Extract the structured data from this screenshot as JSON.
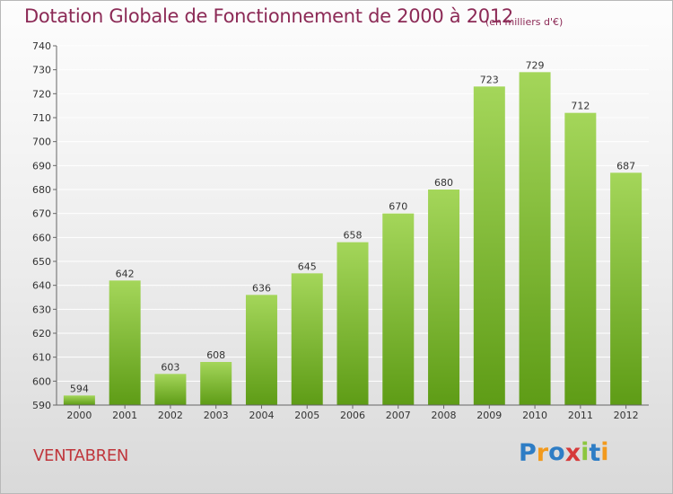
{
  "title": "Dotation Globale de Fonctionnement de 2000 à 2012",
  "unit_note": "(en milliers d'€)",
  "commune": "VENTABREN",
  "logo": {
    "letters": [
      "P",
      "r",
      "o",
      "x",
      "i",
      "t",
      "i"
    ],
    "colors": [
      "#2e7dc5",
      "#f29a1d",
      "#2e7dc5",
      "#d63a3a",
      "#8cc63f",
      "#2e7dc5",
      "#f29a1d"
    ]
  },
  "colors": {
    "bar_light": "#a4d65a",
    "bar_dark": "#5e9c16",
    "axis": "#666666",
    "grid": "#ffffff"
  },
  "chart_data": {
    "type": "bar",
    "categories": [
      "2000",
      "2001",
      "2002",
      "2003",
      "2004",
      "2005",
      "2006",
      "2007",
      "2008",
      "2009",
      "2010",
      "2011",
      "2012"
    ],
    "values": [
      594,
      642,
      603,
      608,
      636,
      645,
      658,
      670,
      680,
      723,
      729,
      712,
      687
    ],
    "ylim": [
      590,
      740
    ],
    "yticks": [
      590,
      600,
      610,
      620,
      630,
      640,
      650,
      660,
      670,
      680,
      690,
      700,
      710,
      720,
      730,
      740
    ],
    "grid": true,
    "data_labels": true
  }
}
